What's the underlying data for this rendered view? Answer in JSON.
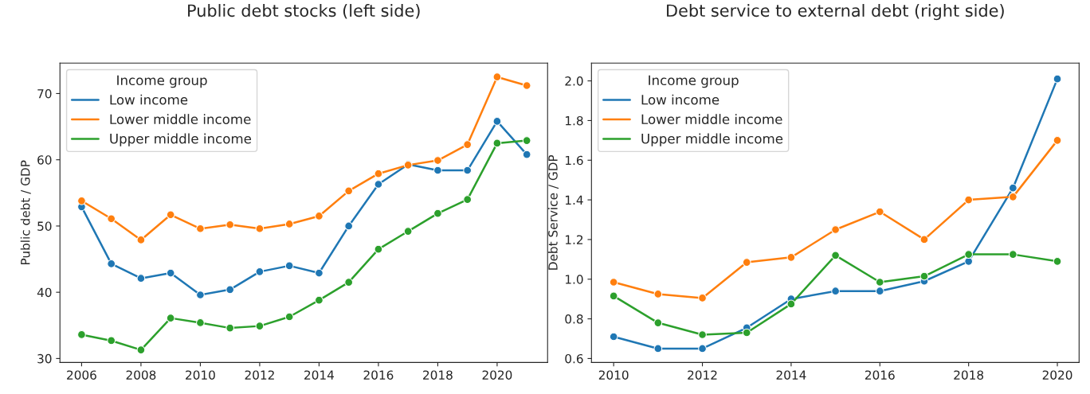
{
  "chart_data": [
    {
      "type": "line",
      "title": "Public debt stocks (left side)",
      "ylabel": "Public debt / GDP",
      "legend_title": "Income group",
      "legend": "top left",
      "marker": "circle",
      "grid": false,
      "x": [
        2006,
        2007,
        2008,
        2009,
        2010,
        2011,
        2012,
        2013,
        2014,
        2015,
        2016,
        2017,
        2018,
        2019,
        2020,
        2021
      ],
      "xlim": [
        2005.27,
        2021.7
      ],
      "xticks": [
        2006,
        2008,
        2010,
        2012,
        2014,
        2016,
        2018,
        2020
      ],
      "ylim": [
        29.4,
        74.6
      ],
      "yticks": [
        30,
        40,
        50,
        60,
        70
      ],
      "series": [
        {
          "name": "Low income",
          "color": "#1f77b4",
          "values": [
            52.9,
            44.3,
            42.1,
            42.9,
            39.6,
            40.4,
            43.1,
            44.0,
            42.9,
            50.0,
            56.3,
            59.3,
            58.4,
            58.4,
            65.8,
            60.8
          ]
        },
        {
          "name": "Lower middle income",
          "color": "#ff7f0e",
          "values": [
            53.8,
            51.1,
            47.9,
            51.7,
            49.6,
            50.2,
            49.6,
            50.3,
            51.5,
            55.3,
            57.9,
            59.2,
            59.9,
            62.3,
            72.5,
            71.2
          ]
        },
        {
          "name": "Upper middle income",
          "color": "#2ca02c",
          "values": [
            33.6,
            32.7,
            31.3,
            36.1,
            35.4,
            34.6,
            34.9,
            36.3,
            38.8,
            41.5,
            46.5,
            49.2,
            51.9,
            54.0,
            62.5,
            62.9
          ]
        }
      ]
    },
    {
      "type": "line",
      "title": "Debt service to external debt (right side)",
      "ylabel": "Debt Service / GDP",
      "legend_title": "Income group",
      "legend": "top left",
      "marker": "circle",
      "grid": false,
      "x": [
        2010,
        2011,
        2012,
        2013,
        2014,
        2015,
        2016,
        2017,
        2018,
        2019,
        2020
      ],
      "xlim": [
        2009.5,
        2020.49
      ],
      "xticks": [
        2010,
        2012,
        2014,
        2016,
        2018,
        2020
      ],
      "ylim": [
        0.58,
        2.09
      ],
      "yticks": [
        {
          "value": 0.6,
          "label": "0.6"
        },
        {
          "value": 0.8,
          "label": "0.8"
        },
        {
          "value": 1.0,
          "label": "1.0"
        },
        {
          "value": 1.2,
          "label": "1.2"
        },
        {
          "value": 1.4,
          "label": "1.4"
        },
        {
          "value": 1.6,
          "label": "1.6"
        },
        {
          "value": 1.8,
          "label": "1.8"
        },
        {
          "value": 2.0,
          "label": "2.0"
        }
      ],
      "series": [
        {
          "name": "Low income",
          "color": "#1f77b4",
          "values": [
            0.71,
            0.65,
            0.65,
            0.755,
            0.9,
            0.94,
            0.94,
            0.99,
            1.09,
            1.46,
            2.01
          ]
        },
        {
          "name": "Lower middle income",
          "color": "#ff7f0e",
          "values": [
            0.985,
            0.925,
            0.905,
            1.085,
            1.11,
            1.25,
            1.34,
            1.2,
            1.4,
            1.415,
            1.7
          ]
        },
        {
          "name": "Upper middle income",
          "color": "#2ca02c",
          "values": [
            0.915,
            0.78,
            0.72,
            0.73,
            0.875,
            1.12,
            0.985,
            1.015,
            1.125,
            1.125,
            1.09
          ]
        }
      ]
    }
  ]
}
